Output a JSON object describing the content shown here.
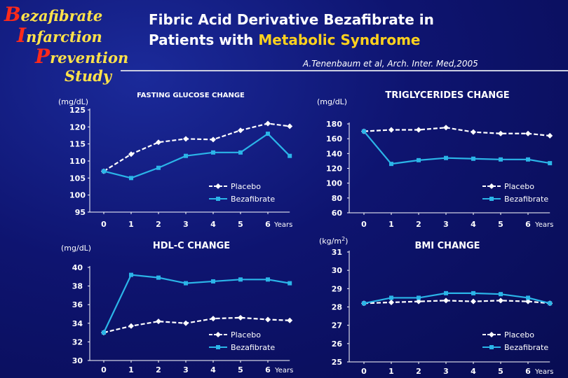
{
  "logo": {
    "line1_cap": "B",
    "line1_rest": "ezafibrate",
    "line2_cap": "I",
    "line2_rest": "nfarction",
    "line3_cap": "P",
    "line3_rest": "revention",
    "line4": "Study"
  },
  "header": {
    "title_line1": "Fibric Acid Derivative Bezafibrate in",
    "title_line2_pre": "Patients with ",
    "title_line2_hl": "Metabolic Syndrome",
    "citation": "A.Tenenbaum et al, Arch. Inter. Med,2005"
  },
  "colors": {
    "background": "#0e1470",
    "placebo": "#ffffff",
    "bezafibrate": "#2bb5e8",
    "accent": "#ffd21e"
  },
  "chart_data": [
    {
      "type": "line",
      "title": "FASTING GLUCOSE CHANGE",
      "ylabel": "(mg/dL)",
      "xlabel": "Years",
      "x": [
        0,
        1,
        2,
        3,
        4,
        5,
        6,
        6.8
      ],
      "x_tick_labels": [
        "0",
        "1",
        "2",
        "3",
        "4",
        "5",
        "6"
      ],
      "y_ticks": [
        95,
        100,
        105,
        110,
        115,
        120,
        125
      ],
      "ylim": [
        95,
        125
      ],
      "legend": "bottom-right",
      "series": [
        {
          "name": "Placebo",
          "style": "dashed",
          "values": [
            107,
            112,
            115.5,
            116.5,
            116.3,
            119,
            121,
            120.2
          ]
        },
        {
          "name": "Bezafibrate",
          "style": "solid",
          "values": [
            107,
            105,
            108,
            111.5,
            112.5,
            112.5,
            118,
            111.5
          ]
        }
      ]
    },
    {
      "type": "line",
      "title": "TRIGLYCERIDES CHANGE",
      "ylabel": "(mg/dL)",
      "xlabel": "Years",
      "x": [
        0,
        1,
        2,
        3,
        4,
        5,
        6,
        6.8
      ],
      "x_tick_labels": [
        "0",
        "1",
        "2",
        "3",
        "4",
        "5",
        "6"
      ],
      "y_ticks": [
        60,
        80,
        100,
        120,
        140,
        160,
        180
      ],
      "ylim": [
        60,
        180
      ],
      "legend": "bottom-right",
      "series": [
        {
          "name": "Placebo",
          "style": "dashed",
          "values": [
            170,
            172,
            172,
            175,
            169,
            167,
            167,
            164
          ]
        },
        {
          "name": "Bezafibrate",
          "style": "solid",
          "values": [
            170,
            126,
            131,
            134,
            133,
            132,
            132,
            127
          ]
        }
      ]
    },
    {
      "type": "line",
      "title": "HDL-C CHANGE",
      "ylabel": "(mg/dL)",
      "xlabel": "Years",
      "x": [
        0,
        1,
        2,
        3,
        4,
        5,
        6,
        6.8
      ],
      "x_tick_labels": [
        "0",
        "1",
        "2",
        "3",
        "4",
        "5",
        "6"
      ],
      "y_ticks": [
        30,
        32,
        34,
        36,
        38,
        40
      ],
      "ylim": [
        30,
        40
      ],
      "legend": "bottom-right",
      "series": [
        {
          "name": "Placebo",
          "style": "dashed",
          "values": [
            33,
            33.7,
            34.2,
            34.0,
            34.5,
            34.6,
            34.4,
            34.3
          ]
        },
        {
          "name": "Bezafibrate",
          "style": "solid",
          "values": [
            33,
            39.2,
            38.9,
            38.3,
            38.5,
            38.7,
            38.7,
            38.3
          ]
        }
      ]
    },
    {
      "type": "line",
      "title": "BMI CHANGE",
      "ylabel": "(kg/m2)",
      "xlabel": "Years",
      "x": [
        0,
        1,
        2,
        3,
        4,
        5,
        6,
        6.8
      ],
      "x_tick_labels": [
        "0",
        "1",
        "2",
        "3",
        "4",
        "5",
        "6"
      ],
      "y_ticks": [
        25,
        26,
        27,
        28,
        29,
        30,
        31
      ],
      "ylim": [
        25,
        31
      ],
      "legend": "bottom-right",
      "series": [
        {
          "name": "Placebo",
          "style": "dashed",
          "values": [
            28.2,
            28.25,
            28.3,
            28.35,
            28.3,
            28.35,
            28.3,
            28.2
          ]
        },
        {
          "name": "Bezafibrate",
          "style": "solid",
          "values": [
            28.2,
            28.5,
            28.5,
            28.75,
            28.75,
            28.7,
            28.5,
            28.2
          ]
        }
      ]
    }
  ]
}
